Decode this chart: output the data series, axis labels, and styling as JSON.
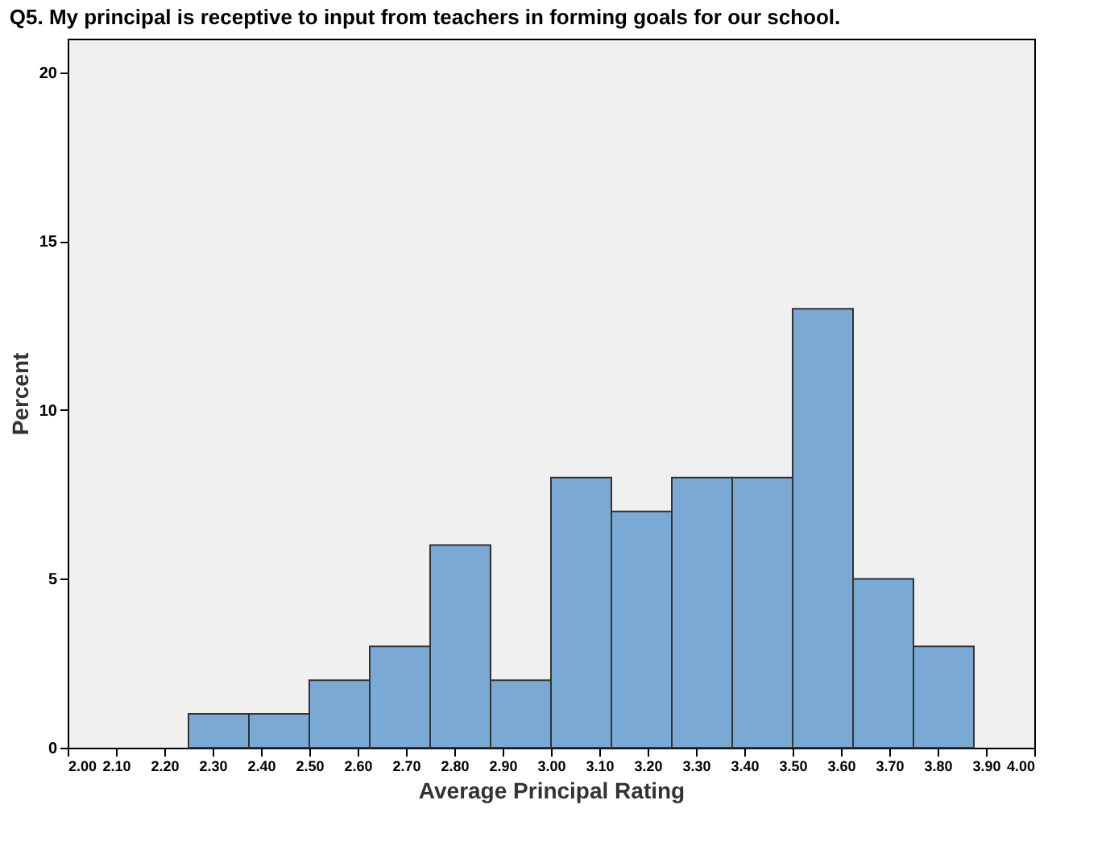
{
  "chart_data": {
    "type": "histogram",
    "title": "Q5. My principal is receptive to input from teachers in forming goals for our school.",
    "xlabel": "Average Principal Rating",
    "ylabel": "Percent",
    "bins": [
      2.25,
      2.375,
      2.5,
      2.625,
      2.75,
      2.875,
      3.0,
      3.125,
      3.25,
      3.375,
      3.5,
      3.625,
      3.75,
      3.875
    ],
    "values": [
      1,
      1,
      2,
      3,
      6,
      2,
      8,
      7,
      8,
      8,
      13,
      5,
      3
    ],
    "color": "#79a9d4",
    "xlim": [
      2.0,
      4.0
    ],
    "xticks": [
      {
        "value": 2.0,
        "label": "2.00"
      },
      {
        "value": 2.1,
        "label": "2.10"
      },
      {
        "value": 2.2,
        "label": "2.20"
      },
      {
        "value": 2.3,
        "label": "2.30"
      },
      {
        "value": 2.4,
        "label": "2.40"
      },
      {
        "value": 2.5,
        "label": "2.50"
      },
      {
        "value": 2.6,
        "label": "2.60"
      },
      {
        "value": 2.7,
        "label": "2.70"
      },
      {
        "value": 2.8,
        "label": "2.80"
      },
      {
        "value": 2.9,
        "label": "2.90"
      },
      {
        "value": 3.0,
        "label": "3.00"
      },
      {
        "value": 3.1,
        "label": "3.10"
      },
      {
        "value": 3.2,
        "label": "3.20"
      },
      {
        "value": 3.3,
        "label": "3.30"
      },
      {
        "value": 3.4,
        "label": "3.40"
      },
      {
        "value": 3.5,
        "label": "3.50"
      },
      {
        "value": 3.6,
        "label": "3.60"
      },
      {
        "value": 3.7,
        "label": "3.70"
      },
      {
        "value": 3.8,
        "label": "3.80"
      },
      {
        "value": 3.9,
        "label": "3.90"
      },
      {
        "value": 4.0,
        "label": "4.00"
      }
    ],
    "ylim": [
      0,
      21
    ],
    "yticks": [
      0,
      5,
      10,
      15,
      20
    ],
    "grid": false
  }
}
